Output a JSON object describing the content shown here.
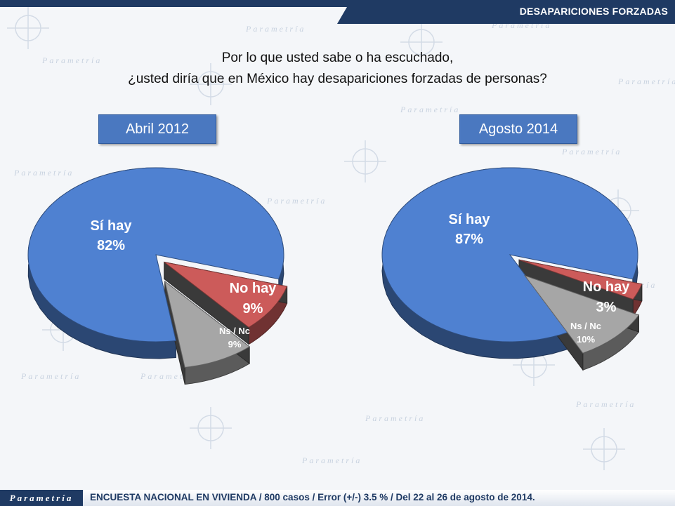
{
  "header": {
    "title": "DESAPARICIONES FORZADAS"
  },
  "question": {
    "line1": "Por lo que usted sabe o ha escuchado,",
    "line2": "¿usted diría que en México hay desapariciones forzadas de personas?"
  },
  "watermark": {
    "text": "Parametría"
  },
  "colors": {
    "si": "#4f81d1",
    "no": "#cc5b5a",
    "ns": "#a6a6a6",
    "header": "#1f3a63",
    "label": "#4a78c0"
  },
  "chart_data": [
    {
      "type": "pie",
      "title": "Abril 2012",
      "slices": [
        {
          "name": "Sí hay",
          "value": 82,
          "label": "82%"
        },
        {
          "name": "No hay",
          "value": 9,
          "label": "9%"
        },
        {
          "name": "Ns / Nc",
          "value": 9,
          "label": "9%"
        }
      ]
    },
    {
      "type": "pie",
      "title": "Agosto 2014",
      "slices": [
        {
          "name": "Sí hay",
          "value": 87,
          "label": "87%"
        },
        {
          "name": "No hay",
          "value": 3,
          "label": "3%"
        },
        {
          "name": "Ns / Nc",
          "value": 10,
          "label": "10%"
        }
      ]
    }
  ],
  "footer": {
    "logo": "Parametría",
    "text": "ENCUESTA NACIONAL EN VIVIENDA / 800 casos / Error (+/-) 3.5 % / Del 22 al 26 de agosto de 2014."
  }
}
